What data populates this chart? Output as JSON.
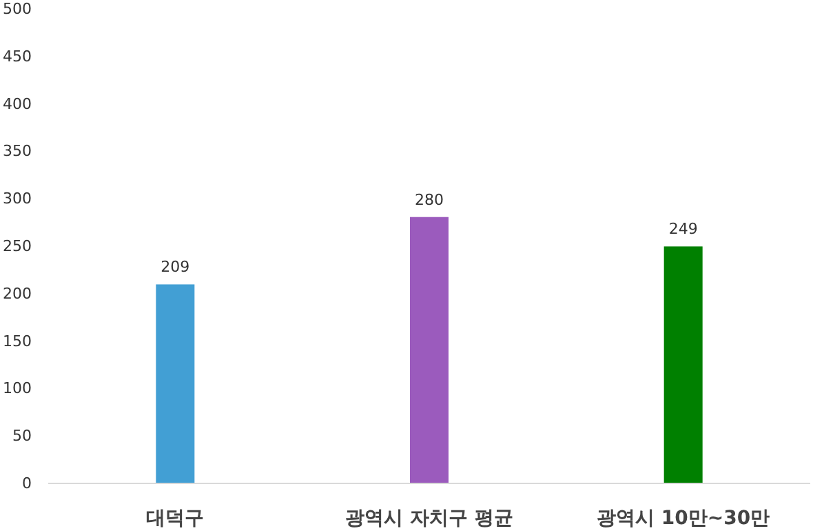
{
  "chart_data": {
    "type": "bar",
    "categories": [
      "대덕구",
      "광역시 자치구 평균",
      "광역시 10만~30만"
    ],
    "values": [
      209,
      280,
      249
    ],
    "colors": [
      "#429fd4",
      "#9b5bbd",
      "#008000"
    ],
    "ylim": [
      0,
      500
    ],
    "yticks": [
      0,
      50,
      100,
      150,
      200,
      250,
      300,
      350,
      400,
      450,
      500
    ],
    "data_labels": true
  }
}
